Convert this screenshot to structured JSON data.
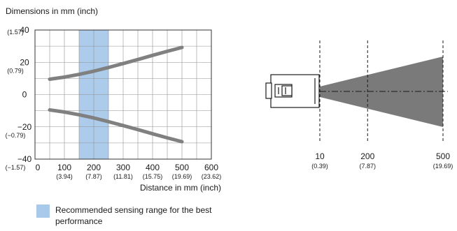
{
  "chart_data": [
    {
      "type": "line",
      "title": "Dimensions in mm (inch)",
      "xlabel": "Distance in mm (inch)",
      "ylabel": "",
      "xlim": [
        0,
        600
      ],
      "ylim": [
        -40,
        40
      ],
      "grid": true,
      "x_ticks": [
        {
          "value": 0,
          "label": "0",
          "sublabel": ""
        },
        {
          "value": 100,
          "label": "100",
          "sublabel": "(3.94)"
        },
        {
          "value": 200,
          "label": "200",
          "sublabel": "(7.87)"
        },
        {
          "value": 300,
          "label": "300",
          "sublabel": "(11.81)"
        },
        {
          "value": 400,
          "label": "400",
          "sublabel": "(15.75)"
        },
        {
          "value": 500,
          "label": "500",
          "sublabel": "(19.69)"
        },
        {
          "value": 600,
          "label": "600",
          "sublabel": "(23.62)"
        }
      ],
      "y_ticks": [
        {
          "value": 40,
          "label": "40",
          "sublabel": "(1.57)"
        },
        {
          "value": 20,
          "label": "20",
          "sublabel": "(0.79)"
        },
        {
          "value": 0,
          "label": "0",
          "sublabel": ""
        },
        {
          "value": -20,
          "label": "−20",
          "sublabel": "(−0.79)"
        },
        {
          "value": -40,
          "label": "−40",
          "sublabel": "(−1.57)"
        }
      ],
      "series": [
        {
          "x": [
            50,
            100,
            150,
            200,
            250,
            300,
            350,
            400,
            450,
            500
          ],
          "y": [
            9.5,
            10.8,
            12.5,
            14.5,
            16.8,
            19.2,
            21.7,
            24.3,
            26.8,
            29.2
          ]
        },
        {
          "x": [
            50,
            100,
            150,
            200,
            250,
            300,
            350,
            400,
            450,
            500
          ],
          "y": [
            -9.5,
            -10.8,
            -12.5,
            -14.5,
            -16.8,
            -19.2,
            -21.7,
            -24.3,
            -26.8,
            -29.2
          ]
        }
      ],
      "highlight_range": {
        "x": [
          150,
          250
        ],
        "color": "#a9c9ea"
      },
      "line_color": "#808080"
    },
    {
      "type": "diagram",
      "distance_marks": [
        {
          "value": 10,
          "label": "10",
          "sublabel": "(0.39)"
        },
        {
          "value": 200,
          "label": "200",
          "sublabel": "(7.87)"
        },
        {
          "value": 500,
          "label": "500",
          "sublabel": "(19.69)"
        }
      ],
      "beam_color": "#7a7a7a"
    }
  ],
  "legend": {
    "text": "Recommended sensing range for the best performance",
    "color": "#a9c9ea"
  }
}
